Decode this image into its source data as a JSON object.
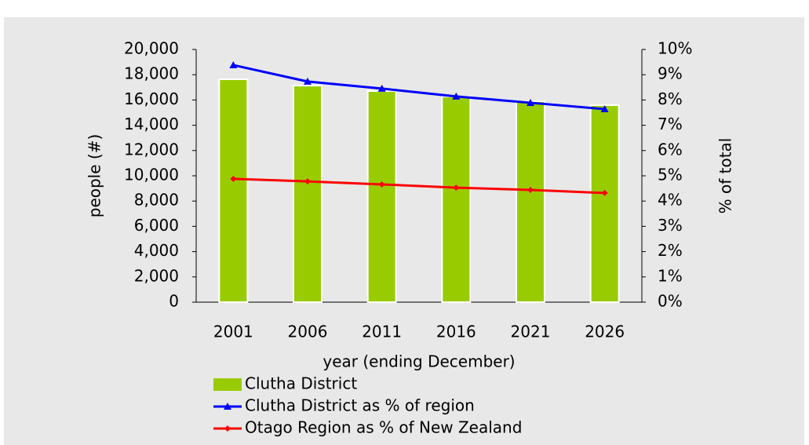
{
  "chart_data": {
    "type": "bar_line",
    "x_label": "year (ending December)",
    "y_label": "people (#)",
    "y2_label": "% of total",
    "categories": [
      "2001",
      "2006",
      "2011",
      "2016",
      "2021",
      "2026"
    ],
    "series": [
      {
        "name": "Clutha District",
        "type": "bar",
        "color": "#99cc00",
        "values": [
          17640,
          17140,
          16710,
          16270,
          15900,
          15590
        ]
      },
      {
        "name": "Clutha District as % of region",
        "type": "line",
        "axis": "y2",
        "color": "#0000ff",
        "marker": "triangle",
        "values": [
          9.38,
          8.73,
          8.45,
          8.14,
          7.89,
          7.64
        ]
      },
      {
        "name": "Otago Region  as % of New Zealand",
        "type": "line",
        "axis": "y2",
        "color": "#ff0000",
        "marker": "diamond",
        "values": [
          4.88,
          4.78,
          4.66,
          4.53,
          4.44,
          4.32
        ]
      }
    ],
    "ylim": [
      0,
      20000
    ],
    "yticks": [
      0,
      {
        "value": 2000,
        "label": "2,000"
      },
      {
        "value": 4000,
        "label": "4,000"
      },
      {
        "value": 6000,
        "label": "6,000"
      },
      {
        "value": 8000,
        "label": "8,000"
      },
      {
        "value": 10000,
        "label": "10,000"
      },
      {
        "value": 12000,
        "label": "12,000"
      },
      {
        "value": 14000,
        "label": "14,000"
      },
      {
        "value": 16000,
        "label": "16,000"
      },
      {
        "value": 18000,
        "label": "18,000"
      },
      {
        "value": 20000,
        "label": "20,000"
      }
    ],
    "y2lim": [
      0,
      10
    ],
    "y2ticks": [
      {
        "value": 0,
        "label": "0%"
      },
      {
        "value": 1,
        "label": "1%"
      },
      {
        "value": 2,
        "label": "2%"
      },
      {
        "value": 3,
        "label": "3%"
      },
      {
        "value": 4,
        "label": "4%"
      },
      {
        "value": 5,
        "label": "5%"
      },
      {
        "value": 6,
        "label": "6%"
      },
      {
        "value": 7,
        "label": "7%"
      },
      {
        "value": 8,
        "label": "8%"
      },
      {
        "value": 9,
        "label": "9%"
      },
      {
        "value": 10,
        "label": "10%"
      }
    ]
  }
}
